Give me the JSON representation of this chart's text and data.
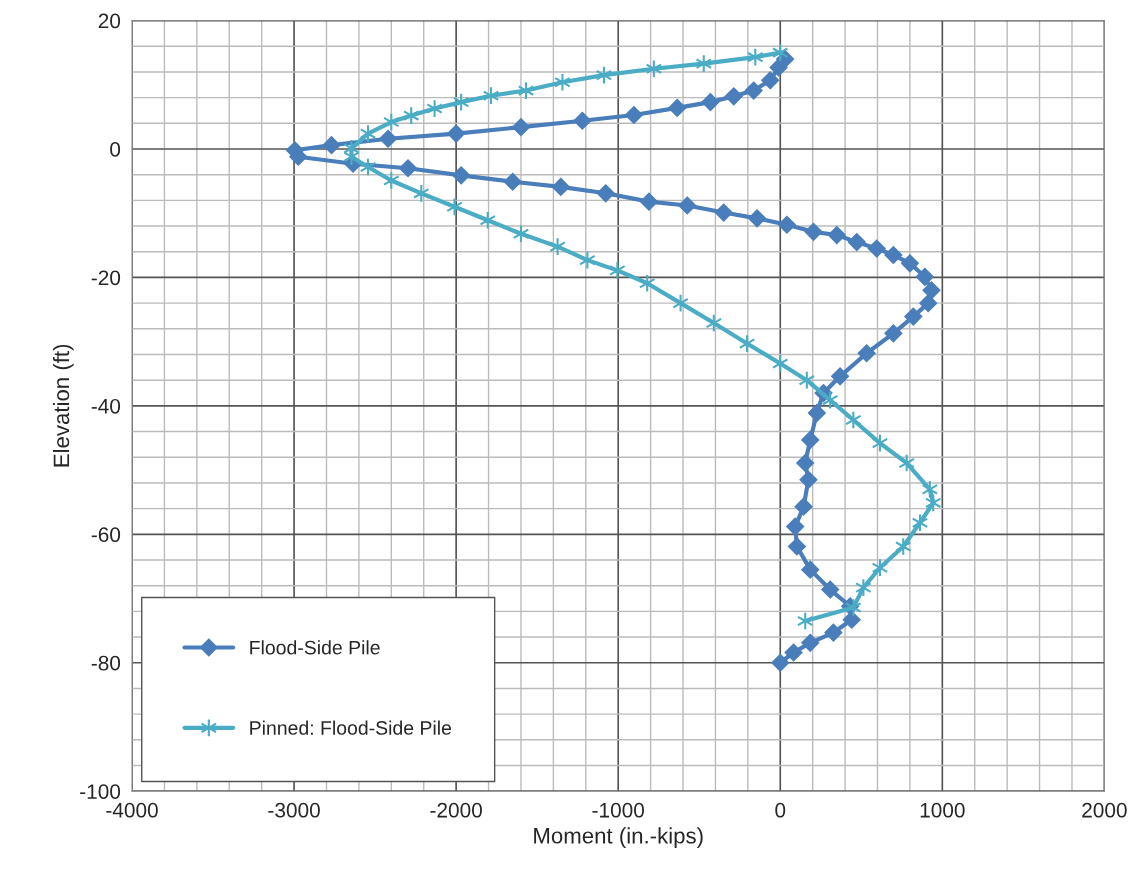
{
  "chart_data": {
    "type": "line",
    "xlabel": "Moment (in.-kips)",
    "ylabel": "Elevation (ft)",
    "xlim": [
      -4000,
      2000
    ],
    "xticks": [
      -4000,
      -3000,
      -2000,
      -1000,
      0,
      1000,
      2000
    ],
    "ylim": [
      -100,
      20
    ],
    "yticks": [
      -100,
      -80,
      -60,
      -40,
      -20,
      0,
      20
    ],
    "grid": true,
    "legend": "bottom left",
    "line_style": "solid",
    "series": [
      {
        "name": "Flood-Side Pile",
        "color": "#4a7ebb",
        "marker": "diamond",
        "x": [
          30,
          -10,
          -62,
          -164,
          -287,
          -431,
          -636,
          -903,
          -1221,
          -1600,
          -2000,
          -2420,
          -2769,
          -2995,
          -2974,
          -2636,
          -2297,
          -1969,
          -1651,
          -1354,
          -1077,
          -810,
          -574,
          -349,
          -143,
          41,
          205,
          349,
          472,
          595,
          698,
          800,
          892,
          933,
          913,
          821,
          698,
          533,
          369,
          267,
          226,
          185,
          154,
          174,
          144,
          92,
          103,
          185,
          308,
          431,
          441,
          328,
          185,
          82,
          0
        ],
        "values": [
          14,
          12.7,
          10.7,
          9.1,
          8.2,
          7.3,
          6.4,
          5.3,
          4.4,
          3.4,
          2.4,
          1.6,
          0.6,
          -0.2,
          -1.2,
          -2.3,
          -3,
          -4.1,
          -5.1,
          -5.9,
          -6.9,
          -8.2,
          -8.8,
          -9.9,
          -10.8,
          -11.8,
          -12.9,
          -13.4,
          -14.5,
          -15.5,
          -16.5,
          -17.8,
          -19.9,
          -22,
          -24,
          -26.1,
          -28.7,
          -31.8,
          -35.4,
          -38,
          -41.1,
          -45.3,
          -48.9,
          -51.5,
          -55.7,
          -58.8,
          -61.9,
          -65.5,
          -68.6,
          -71.2,
          -73.3,
          -75.3,
          -76.9,
          -78.4,
          -80
        ]
      },
      {
        "name": "Pinned: Flood-Side Pile",
        "color": "#4bacc6",
        "marker": "cross",
        "x": [
          0,
          -154,
          -472,
          -780,
          -1088,
          -1344,
          -1569,
          -1785,
          -1969,
          -2133,
          -2277,
          -2400,
          -2544,
          -2646,
          -2646,
          -2544,
          -2400,
          -2215,
          -2010,
          -1805,
          -1600,
          -1374,
          -1190,
          -1005,
          -821,
          -615,
          -410,
          -205,
          0,
          164,
          308,
          451,
          615,
          780,
          923,
          944,
          862,
          759,
          615,
          513,
          451,
          154
        ],
        "values": [
          15,
          14.3,
          13.3,
          12.5,
          11.5,
          10.4,
          9.1,
          8.3,
          7.3,
          6.3,
          5.2,
          4.2,
          2.4,
          0.1,
          -1.2,
          -2.8,
          -4.9,
          -6.9,
          -9,
          -11.1,
          -13.2,
          -15.2,
          -17.3,
          -18.9,
          -20.9,
          -24,
          -27.1,
          -30.3,
          -33.4,
          -36,
          -39.1,
          -42.2,
          -45.8,
          -48.9,
          -53,
          -55.1,
          -58.2,
          -61.9,
          -65.2,
          -68.3,
          -71.4,
          -73.5
        ]
      }
    ]
  }
}
